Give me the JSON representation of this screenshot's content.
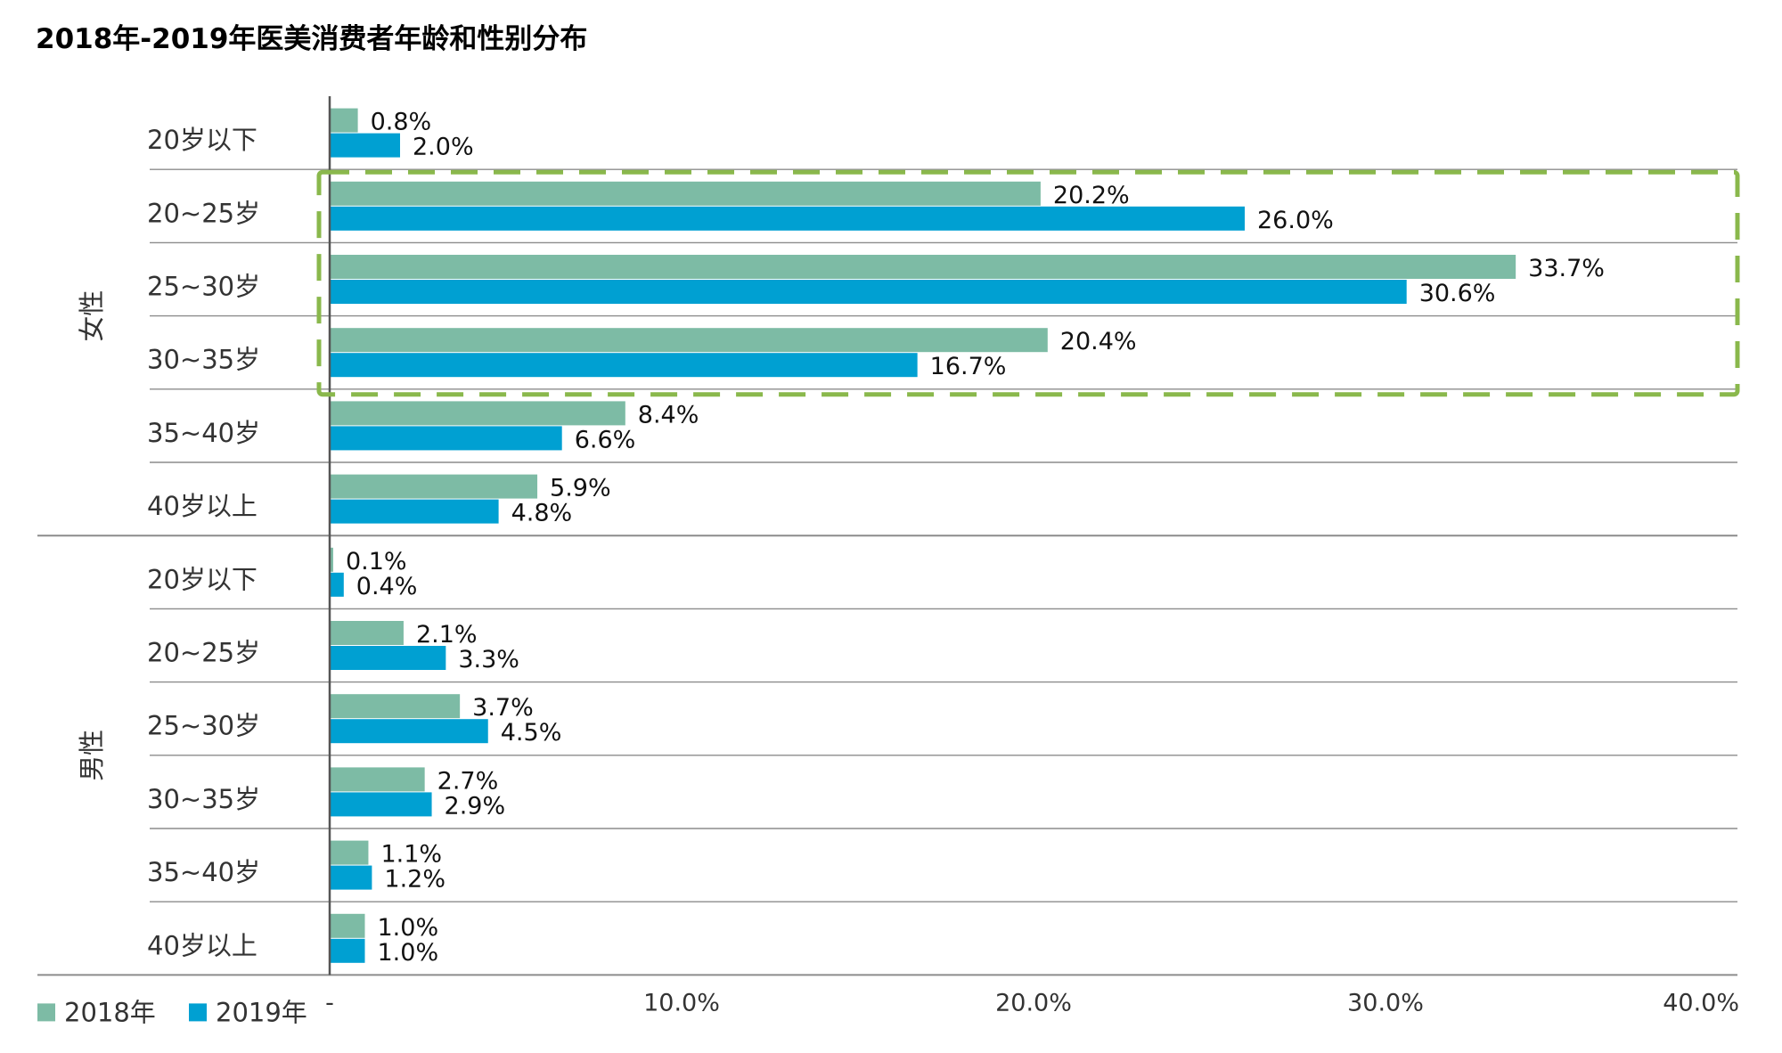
{
  "title": "2018年-2019年医美消费者年龄和性别分布",
  "chart_data": {
    "type": "bar",
    "orientation": "horizontal",
    "title": "2018年-2019年医美消费者年龄和性别分布",
    "groups": [
      {
        "name": "女性",
        "categories": [
          "20岁以下",
          "20~25岁",
          "25~30岁",
          "30~35岁",
          "35~40岁",
          "40岁以上"
        ]
      },
      {
        "name": "男性",
        "categories": [
          "20岁以下",
          "20~25岁",
          "25~30岁",
          "30~35岁",
          "35~40岁",
          "40岁以上"
        ]
      }
    ],
    "series": [
      {
        "name": "2018年",
        "color": "#7dbba5",
        "values": [
          0.8,
          20.2,
          33.7,
          20.4,
          8.4,
          5.9,
          0.1,
          2.1,
          3.7,
          2.7,
          1.1,
          1.0
        ],
        "labels": [
          "0.8%",
          "20.2%",
          "33.7%",
          "20.4%",
          "8.4%",
          "5.9%",
          "0.1%",
          "2.1%",
          "3.7%",
          "2.7%",
          "1.1%",
          "1.0%"
        ]
      },
      {
        "name": "2019年",
        "color": "#00a0d2",
        "values": [
          2.0,
          26.0,
          30.6,
          16.7,
          6.6,
          4.8,
          0.4,
          3.3,
          4.5,
          2.9,
          1.2,
          1.0
        ],
        "labels": [
          "2.0%",
          "26.0%",
          "30.6%",
          "16.7%",
          "6.6%",
          "4.8%",
          "0.4%",
          "3.3%",
          "4.5%",
          "2.9%",
          "1.2%",
          "1.0%"
        ]
      }
    ],
    "xlim": [
      0,
      40
    ],
    "xticks": [
      "-",
      "10.0%",
      "20.0%",
      "30.0%",
      "40.0%"
    ],
    "highlight": {
      "group": "女性",
      "categories": [
        "20~25岁",
        "25~30岁",
        "30~35岁"
      ],
      "style": "dashed box",
      "color": "#8ab84c"
    },
    "legend_position": "bottom-left",
    "grid": false
  }
}
